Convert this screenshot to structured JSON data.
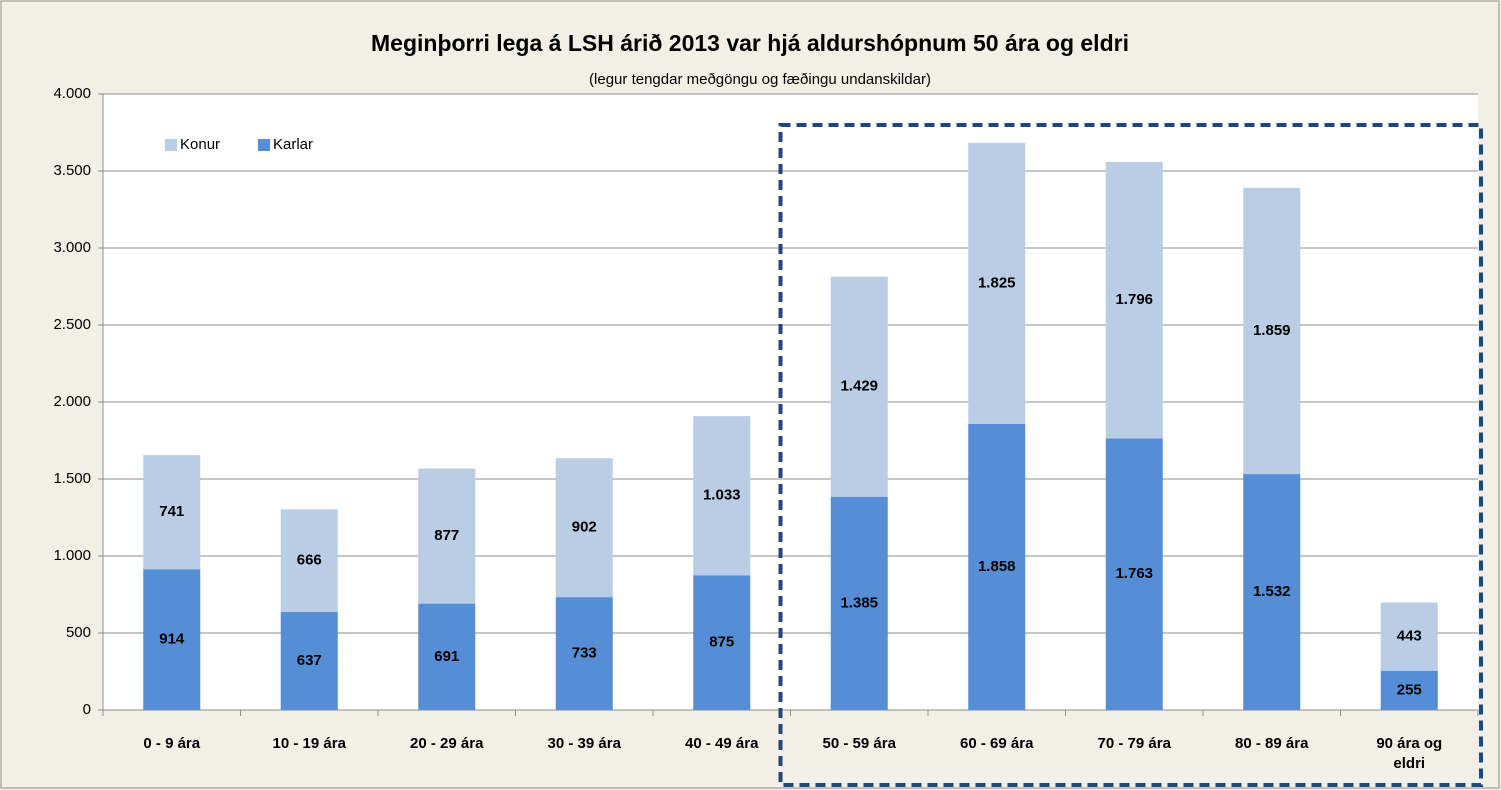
{
  "chart_data": {
    "type": "stacked_bar",
    "title": "Meginþorri lega á LSH árið 2013 var hjá aldurshópnum 50 ára og eldri",
    "subtitle": "(legur tengdar meðgöngu og fæðingu undanskildar)",
    "categories": [
      "0 - 9 ára",
      "10 - 19 ára",
      "20 - 29 ára",
      "30 - 39 ára",
      "40 - 49 ára",
      "50 - 59 ára",
      "60 - 69 ára",
      "70 - 79 ára",
      "80 - 89 ára",
      "90 ára og eldri"
    ],
    "series": [
      {
        "name": "Karlar",
        "color": "#558ed5",
        "values": [
          914,
          637,
          691,
          733,
          875,
          1385,
          1858,
          1763,
          1532,
          255
        ],
        "value_labels": [
          "914",
          "637",
          "691",
          "733",
          "875",
          "1.385",
          "1.858",
          "1.763",
          "1.532",
          "255"
        ]
      },
      {
        "name": "Konur",
        "color": "#b9cde5",
        "values": [
          741,
          666,
          877,
          902,
          1033,
          1429,
          1825,
          1796,
          1859,
          443
        ],
        "value_labels": [
          "741",
          "666",
          "877",
          "902",
          "1.033",
          "1.429",
          "1.825",
          "1.796",
          "1.859",
          "443"
        ]
      }
    ],
    "ylim": [
      0,
      4000
    ],
    "yticks": [
      0,
      500,
      {
        "value": 1000,
        "label": "1.000"
      },
      {
        "value": 1500,
        "label": "1.500"
      },
      {
        "value": 2000,
        "label": "2.000"
      },
      {
        "value": 2500,
        "label": "2.500"
      },
      {
        "value": 3000,
        "label": "3.000"
      },
      {
        "value": 3500,
        "label": "3.500"
      },
      {
        "value": 4000,
        "label": "4.000"
      }
    ],
    "grid": true,
    "legend": "upper left"
  }
}
